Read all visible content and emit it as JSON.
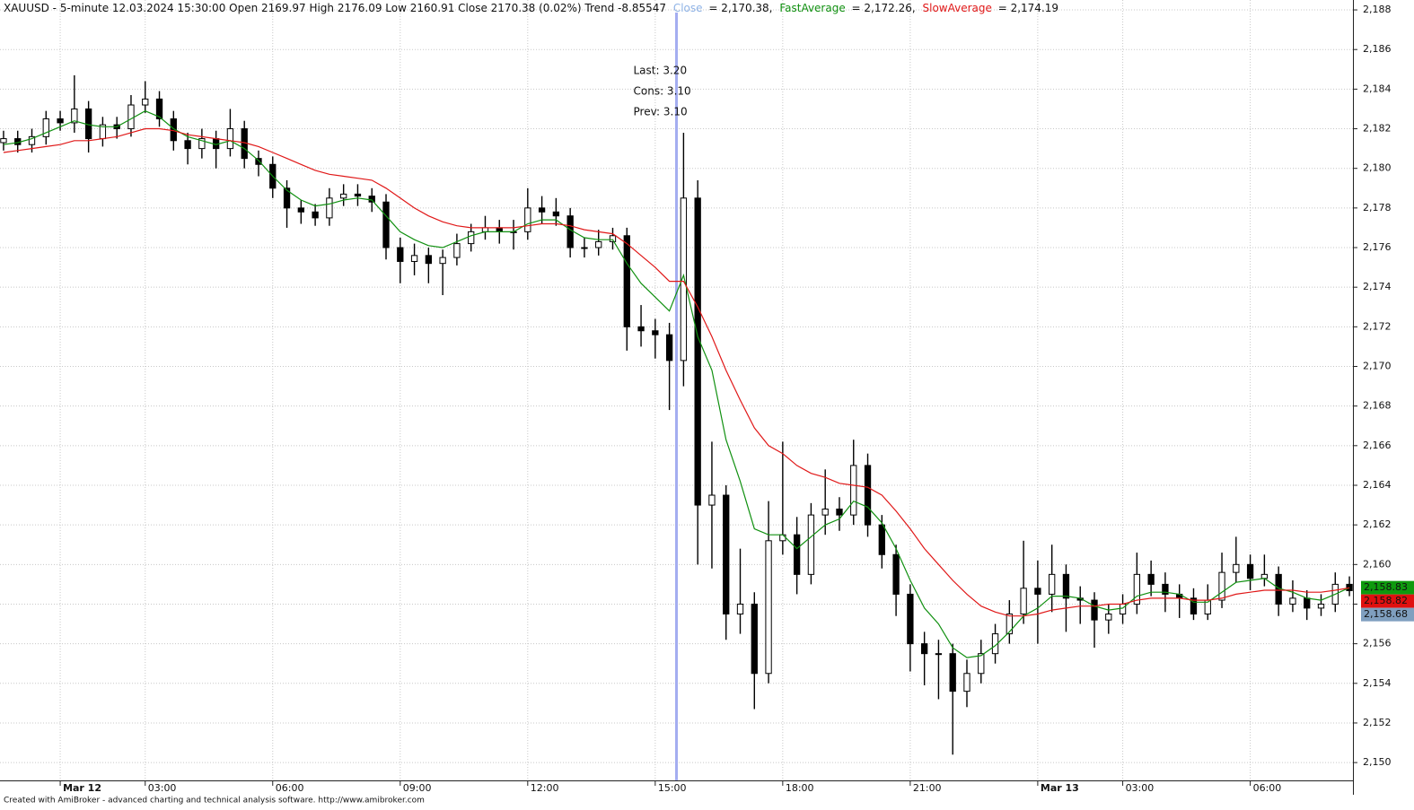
{
  "chart_data": {
    "type": "candlestick",
    "header": "XAUUSD - 5-minute 12.03.2024 15:30:00 Open 2169.97 High 2176.09 Low 2160.91 Close 2170.38 (0.02%) Trend -8.85547",
    "close_readout": {
      "name": "Close",
      "text": "= 2,170.38,",
      "color": "#8fb3e6"
    },
    "readout_texts": [
      "= 2,172.26,",
      "= 2,174.19"
    ],
    "footer": "Created with AmiBroker - advanced charting and technical analysis software. http://www.amibroker.com",
    "annotations": [
      "Last: 3.20",
      "Cons: 3.10",
      "Prev: 3.10"
    ],
    "annotation_color": "#1f9a1f",
    "cursor_x": 174,
    "cursor_color": "#a4adf0",
    "xlim": [
      -17,
      365
    ],
    "ylim": [
      2149.1,
      2188.5
    ],
    "grid": true,
    "xticks": [
      {
        "value": 0,
        "label": "Mar 12"
      },
      {
        "value": 24,
        "label": "03:00"
      },
      {
        "value": 60,
        "label": "06:00"
      },
      {
        "value": 96,
        "label": "09:00"
      },
      {
        "value": 132,
        "label": "12:00"
      },
      {
        "value": 168,
        "label": "15:00"
      },
      {
        "value": 204,
        "label": "18:00"
      },
      {
        "value": 240,
        "label": "21:00"
      },
      {
        "value": 276,
        "label": "Mar 13"
      },
      {
        "value": 300,
        "label": "03:00"
      },
      {
        "value": 336,
        "label": "06:00"
      }
    ],
    "yticks": [
      {
        "value": 2150,
        "label": "2,150"
      },
      {
        "value": 2152,
        "label": "2,152"
      },
      {
        "value": 2154,
        "label": "2,154"
      },
      {
        "value": 2156,
        "label": "2,156"
      },
      {
        "value": 2158,
        "label": "2,158"
      },
      {
        "value": 2160,
        "label": "2,160"
      },
      {
        "value": 2162,
        "label": "2,162"
      },
      {
        "value": 2164,
        "label": "2,164"
      },
      {
        "value": 2166,
        "label": "2,166"
      },
      {
        "value": 2168,
        "label": "2,168"
      },
      {
        "value": 2170,
        "label": "2,170"
      },
      {
        "value": 2172,
        "label": "2,172"
      },
      {
        "value": 2174,
        "label": "2,174"
      },
      {
        "value": 2176,
        "label": "2,176"
      },
      {
        "value": 2178,
        "label": "2,178"
      },
      {
        "value": 2180,
        "label": "2,180"
      },
      {
        "value": 2182,
        "label": "2,182"
      },
      {
        "value": 2184,
        "label": "2,184"
      },
      {
        "value": 2186,
        "label": "2,186"
      },
      {
        "value": 2188,
        "label": "2,188"
      }
    ],
    "price_tags": [
      {
        "value": 2158.83,
        "label": "2,158.83",
        "color": "#0e9a0e"
      },
      {
        "value": 2158.82,
        "label": "2,158.82",
        "color": "#e01010"
      },
      {
        "value": 2158.68,
        "label": "2,158.68",
        "color": "#7f9fbf"
      }
    ],
    "x": [
      -16,
      -12,
      -8,
      -4,
      0,
      4,
      8,
      12,
      16,
      20,
      24,
      28,
      32,
      36,
      40,
      44,
      48,
      52,
      56,
      60,
      64,
      68,
      72,
      76,
      80,
      84,
      88,
      92,
      96,
      100,
      104,
      108,
      112,
      116,
      120,
      124,
      128,
      132,
      136,
      140,
      144,
      148,
      152,
      156,
      160,
      164,
      168,
      172,
      176,
      180,
      184,
      188,
      192,
      196,
      200,
      204,
      208,
      212,
      216,
      220,
      224,
      228,
      232,
      236,
      240,
      244,
      248,
      252,
      256,
      260,
      264,
      268,
      272,
      276,
      280,
      284,
      288,
      292,
      296,
      300,
      304,
      308,
      312,
      316,
      320,
      324,
      328,
      332,
      336,
      340,
      344,
      348,
      352,
      356,
      360,
      364
    ],
    "open": [
      2181.3,
      2181.5,
      2181.2,
      2181.6,
      2182.5,
      2182.3,
      2183,
      2181.5,
      2182.2,
      2182,
      2183.2,
      2183.5,
      2182.5,
      2181.4,
      2181,
      2181.5,
      2181,
      2182,
      2180.5,
      2180.2,
      2179,
      2178,
      2177.8,
      2177.5,
      2178.5,
      2178.7,
      2178.6,
      2178.3,
      2176,
      2175.3,
      2175.6,
      2175.2,
      2175.5,
      2176.2,
      2176.8,
      2177,
      2176.8,
      2176.8,
      2178,
      2177.8,
      2177.6,
      2176,
      2176,
      2176.3,
      2176.6,
      2172,
      2171.8,
      2171.6,
      2170.3,
      2178.5,
      2163,
      2163.5,
      2157.5,
      2158,
      2154.5,
      2161.2,
      2161.5,
      2159.5,
      2162.5,
      2162.8,
      2162.5,
      2165,
      2162,
      2160.5,
      2158.5,
      2156,
      2155.5,
      2155.5,
      2153.6,
      2154.5,
      2155.5,
      2156.5,
      2157.5,
      2158.8,
      2158.5,
      2159.5,
      2158.3,
      2158.2,
      2157.2,
      2157.5,
      2158,
      2159.5,
      2159,
      2158.5,
      2158.3,
      2157.5,
      2158.2,
      2159.6,
      2160,
      2159.3,
      2159.5,
      2158,
      2158.3,
      2157.8,
      2158,
      2159
    ],
    "high": [
      2181.9,
      2181.9,
      2182,
      2182.9,
      2182.9,
      2184.7,
      2183.4,
      2182.6,
      2182.6,
      2183.7,
      2184.4,
      2183.9,
      2182.9,
      2181.8,
      2182,
      2181.9,
      2183,
      2182.4,
      2180.9,
      2180.6,
      2179.4,
      2178.4,
      2178.2,
      2179,
      2179.2,
      2179.2,
      2179,
      2178.7,
      2176.5,
      2176.2,
      2176,
      2175.9,
      2176.7,
      2177.2,
      2177.6,
      2177.4,
      2177.4,
      2179,
      2178.6,
      2178.5,
      2178,
      2176.5,
      2176.9,
      2177,
      2177,
      2173.1,
      2172.4,
      2172.2,
      2181.8,
      2179.4,
      2166.2,
      2164,
      2160.8,
      2158.6,
      2163.2,
      2166.2,
      2162.4,
      2163.1,
      2164.8,
      2163.4,
      2166.3,
      2165.6,
      2162.5,
      2161,
      2159,
      2156.6,
      2156.2,
      2156,
      2155.2,
      2156.2,
      2157,
      2158.2,
      2161.2,
      2160.2,
      2161,
      2160,
      2158.9,
      2158.6,
      2158,
      2158.5,
      2160.6,
      2160.2,
      2159.6,
      2159,
      2158.8,
      2159,
      2160.6,
      2161.4,
      2160.5,
      2160.5,
      2159.9,
      2159.2,
      2158.7,
      2158.5,
      2159.6,
      2159.4
    ],
    "low": [
      2180.9,
      2180.8,
      2180.8,
      2181.2,
      2181.9,
      2181.8,
      2180.8,
      2181.1,
      2181.5,
      2181.6,
      2182.8,
      2182.1,
      2180.9,
      2180.2,
      2180.5,
      2180,
      2180.6,
      2180,
      2179.6,
      2178.5,
      2177,
      2177.2,
      2177.1,
      2177.1,
      2178.1,
      2178.1,
      2177.8,
      2175.4,
      2174.2,
      2174.6,
      2174.2,
      2173.6,
      2175.1,
      2175.8,
      2176.4,
      2176.2,
      2175.9,
      2176.4,
      2177.2,
      2177.1,
      2175.5,
      2175.5,
      2175.6,
      2175.9,
      2170.8,
      2171,
      2170.4,
      2167.8,
      2169,
      2160,
      2159.8,
      2156.2,
      2156.5,
      2152.7,
      2154,
      2160.5,
      2158.5,
      2159,
      2161.5,
      2161.7,
      2162,
      2161.4,
      2159.8,
      2157.4,
      2154.6,
      2153.9,
      2153.2,
      2150.4,
      2152.8,
      2154,
      2155,
      2156,
      2157,
      2156,
      2157.6,
      2156.6,
      2157,
      2155.8,
      2156.5,
      2157,
      2157.5,
      2158.4,
      2157.6,
      2157.3,
      2157.2,
      2157.2,
      2157.8,
      2159.1,
      2158.7,
      2158.9,
      2157.4,
      2157.6,
      2157.2,
      2157.4,
      2157.6,
      2158.4
    ],
    "close": [
      2181.5,
      2181.2,
      2181.6,
      2182.5,
      2182.3,
      2183,
      2181.5,
      2182.2,
      2182,
      2183.2,
      2183.5,
      2182.5,
      2181.4,
      2181,
      2181.5,
      2181,
      2182,
      2180.5,
      2180.2,
      2179,
      2178,
      2177.8,
      2177.5,
      2178.5,
      2178.7,
      2178.6,
      2178.3,
      2176,
      2175.3,
      2175.6,
      2175.2,
      2175.5,
      2176.2,
      2176.8,
      2177,
      2176.8,
      2176.8,
      2178,
      2177.8,
      2177.6,
      2176,
      2176,
      2176.3,
      2176.6,
      2172,
      2171.8,
      2171.6,
      2170.3,
      2178.5,
      2163,
      2163.5,
      2157.5,
      2158,
      2154.5,
      2161.2,
      2161.5,
      2159.5,
      2162.5,
      2162.8,
      2162.5,
      2165,
      2162,
      2160.5,
      2158.5,
      2156,
      2155.5,
      2155.5,
      2153.6,
      2154.5,
      2155.5,
      2156.5,
      2157.5,
      2158.8,
      2158.5,
      2159.5,
      2158.3,
      2158.2,
      2157.2,
      2157.5,
      2158,
      2159.5,
      2159,
      2158.5,
      2158.3,
      2157.5,
      2158.2,
      2159.6,
      2160,
      2159.3,
      2159.5,
      2158,
      2158.3,
      2157.8,
      2158,
      2159,
      2158.68
    ],
    "series": [
      {
        "name": "FastAverage",
        "color": "#109010",
        "values": [
          2181.2,
          2181.3,
          2181.5,
          2181.8,
          2182.1,
          2182.4,
          2182.2,
          2182.1,
          2182.1,
          2182.5,
          2182.9,
          2182.6,
          2182,
          2181.6,
          2181.4,
          2181.2,
          2181.4,
          2181,
          2180.4,
          2179.6,
          2178.9,
          2178.4,
          2178.1,
          2178.2,
          2178.4,
          2178.5,
          2178.4,
          2177.6,
          2176.8,
          2176.4,
          2176.1,
          2176,
          2176.3,
          2176.6,
          2176.8,
          2176.8,
          2176.8,
          2177.2,
          2177.4,
          2177.4,
          2176.9,
          2176.5,
          2176.4,
          2176.4,
          2175.2,
          2174.2,
          2173.5,
          2172.8,
          2174.6,
          2171.5,
          2169.8,
          2166.3,
          2164.2,
          2161.8,
          2161.5,
          2161.5,
          2160.8,
          2161.4,
          2162,
          2162.3,
          2163.2,
          2162.9,
          2162.1,
          2160.8,
          2159.2,
          2157.8,
          2157,
          2155.8,
          2155.3,
          2155.4,
          2155.9,
          2156.6,
          2157.4,
          2157.8,
          2158.4,
          2158.4,
          2158.3,
          2157.9,
          2157.7,
          2157.8,
          2158.4,
          2158.6,
          2158.6,
          2158.5,
          2158.1,
          2158.1,
          2158.6,
          2159.1,
          2159.2,
          2159.3,
          2158.8,
          2158.6,
          2158.3,
          2158.2,
          2158.5,
          2158.83
        ]
      },
      {
        "name": "SlowAverage",
        "color": "#e01818",
        "values": [
          2180.8,
          2180.9,
          2181,
          2181.1,
          2181.2,
          2181.4,
          2181.4,
          2181.5,
          2181.6,
          2181.8,
          2182,
          2182,
          2181.9,
          2181.7,
          2181.6,
          2181.5,
          2181.4,
          2181.3,
          2181.1,
          2180.8,
          2180.5,
          2180.2,
          2179.9,
          2179.7,
          2179.6,
          2179.5,
          2179.4,
          2179,
          2178.5,
          2178,
          2177.6,
          2177.3,
          2177.1,
          2177,
          2177,
          2177,
          2177,
          2177.1,
          2177.2,
          2177.2,
          2177.1,
          2176.9,
          2176.8,
          2176.7,
          2176.2,
          2175.6,
          2175,
          2174.3,
          2174.3,
          2173,
          2171.5,
          2169.8,
          2168.3,
          2166.9,
          2166,
          2165.6,
          2165,
          2164.6,
          2164.4,
          2164.1,
          2164,
          2163.9,
          2163.5,
          2162.7,
          2161.8,
          2160.8,
          2160,
          2159.2,
          2158.5,
          2157.9,
          2157.6,
          2157.4,
          2157.4,
          2157.5,
          2157.7,
          2157.8,
          2157.9,
          2157.9,
          2158,
          2158,
          2158.2,
          2158.3,
          2158.3,
          2158.3,
          2158.2,
          2158.2,
          2158.3,
          2158.5,
          2158.6,
          2158.7,
          2158.7,
          2158.7,
          2158.6,
          2158.6,
          2158.7,
          2158.82
        ]
      }
    ]
  }
}
